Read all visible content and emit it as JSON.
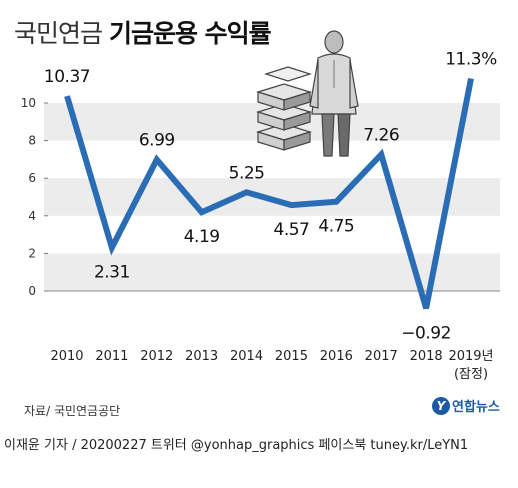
{
  "title": {
    "light": "국민연금",
    "bold": "기금운용 수익률"
  },
  "source": "자료/ 국민연금공단",
  "logo": {
    "mark": "Y",
    "name": "연합뉴스"
  },
  "footer": "이재윤 기자 / 20200227  트위터 @yonhap_graphics  페이스북 tuney.kr/LeYN1",
  "colors": {
    "line": "#2a6db5",
    "band": "#ececec",
    "axis": "#555555"
  },
  "chart_data": {
    "type": "line",
    "categories": [
      "2010",
      "2011",
      "2012",
      "2013",
      "2014",
      "2015",
      "2016",
      "2017",
      "2018",
      "2019년"
    ],
    "category_note": "(잠정)",
    "values": [
      10.37,
      2.31,
      6.99,
      4.19,
      5.25,
      4.57,
      4.75,
      7.26,
      -0.92,
      11.3
    ],
    "labels": [
      "10.37",
      "2.31",
      "6.99",
      "4.19",
      "5.25",
      "4.57",
      "4.75",
      "7.26",
      "−0.92",
      "11.3%"
    ],
    "yticks": [
      0,
      2,
      4,
      6,
      8,
      10
    ],
    "ylim": [
      -1.3,
      12.3
    ],
    "grid": "alternating bands",
    "legend": "none"
  }
}
